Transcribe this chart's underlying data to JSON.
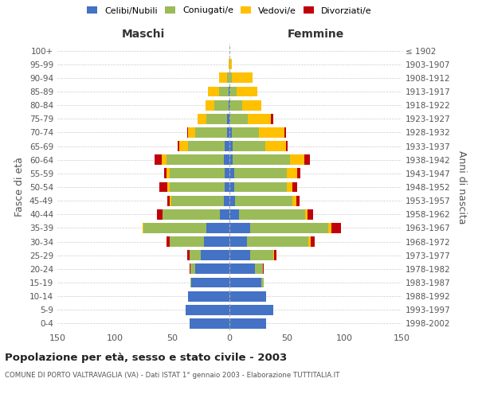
{
  "age_groups": [
    "0-4",
    "5-9",
    "10-14",
    "15-19",
    "20-24",
    "25-29",
    "30-34",
    "35-39",
    "40-44",
    "45-49",
    "50-54",
    "55-59",
    "60-64",
    "65-69",
    "70-74",
    "75-79",
    "80-84",
    "85-89",
    "90-94",
    "95-99",
    "100+"
  ],
  "birth_years": [
    "1998-2002",
    "1993-1997",
    "1988-1992",
    "1983-1987",
    "1978-1982",
    "1973-1977",
    "1968-1972",
    "1963-1967",
    "1958-1962",
    "1953-1957",
    "1948-1952",
    "1943-1947",
    "1938-1942",
    "1933-1937",
    "1928-1932",
    "1923-1927",
    "1918-1922",
    "1913-1917",
    "1908-1912",
    "1903-1907",
    "≤ 1902"
  ],
  "colors": {
    "celibe": "#4472C4",
    "coniugato": "#9BBB59",
    "vedovo": "#FFC000",
    "divorziato": "#C0000A"
  },
  "males": {
    "celibe": [
      35,
      38,
      36,
      33,
      30,
      25,
      22,
      20,
      8,
      5,
      4,
      4,
      5,
      4,
      2,
      2,
      1,
      1,
      0,
      0,
      0
    ],
    "coniugato": [
      0,
      0,
      0,
      1,
      4,
      10,
      30,
      55,
      50,
      46,
      48,
      48,
      50,
      32,
      28,
      18,
      12,
      8,
      2,
      0,
      0
    ],
    "vedovo": [
      0,
      0,
      0,
      0,
      0,
      0,
      0,
      1,
      0,
      1,
      2,
      3,
      4,
      8,
      6,
      8,
      8,
      10,
      7,
      1,
      0
    ],
    "divorziato": [
      0,
      0,
      0,
      0,
      1,
      2,
      3,
      0,
      5,
      2,
      7,
      2,
      6,
      1,
      1,
      0,
      0,
      0,
      0,
      0,
      0
    ]
  },
  "females": {
    "nubile": [
      32,
      38,
      32,
      28,
      22,
      18,
      15,
      18,
      8,
      5,
      4,
      4,
      3,
      3,
      2,
      1,
      1,
      1,
      0,
      0,
      0
    ],
    "coniugata": [
      0,
      0,
      0,
      2,
      7,
      20,
      54,
      68,
      58,
      50,
      46,
      46,
      50,
      28,
      24,
      15,
      10,
      5,
      2,
      0,
      0
    ],
    "vedova": [
      0,
      0,
      0,
      0,
      0,
      1,
      2,
      3,
      2,
      3,
      5,
      9,
      12,
      18,
      22,
      20,
      17,
      18,
      18,
      2,
      0
    ],
    "divorziata": [
      0,
      0,
      0,
      0,
      1,
      2,
      3,
      8,
      5,
      3,
      4,
      3,
      5,
      2,
      1,
      2,
      0,
      0,
      0,
      0,
      0
    ]
  },
  "xlim": 150,
  "title": "Popolazione per età, sesso e stato civile - 2003",
  "subtitle": "COMUNE DI PORTO VALTRAVAGLIA (VA) - Dati ISTAT 1° gennaio 2003 - Elaborazione TUTTITALIA.IT",
  "ylabel_left": "Fasce di età",
  "ylabel_right": "Anni di nascita",
  "xlabel_left": "Maschi",
  "xlabel_right": "Femmine",
  "legend_labels": [
    "Celibi/Nubili",
    "Coniugati/e",
    "Vedovi/e",
    "Divorziati/e"
  ],
  "background": "#ffffff",
  "grid_color": "#cccccc"
}
